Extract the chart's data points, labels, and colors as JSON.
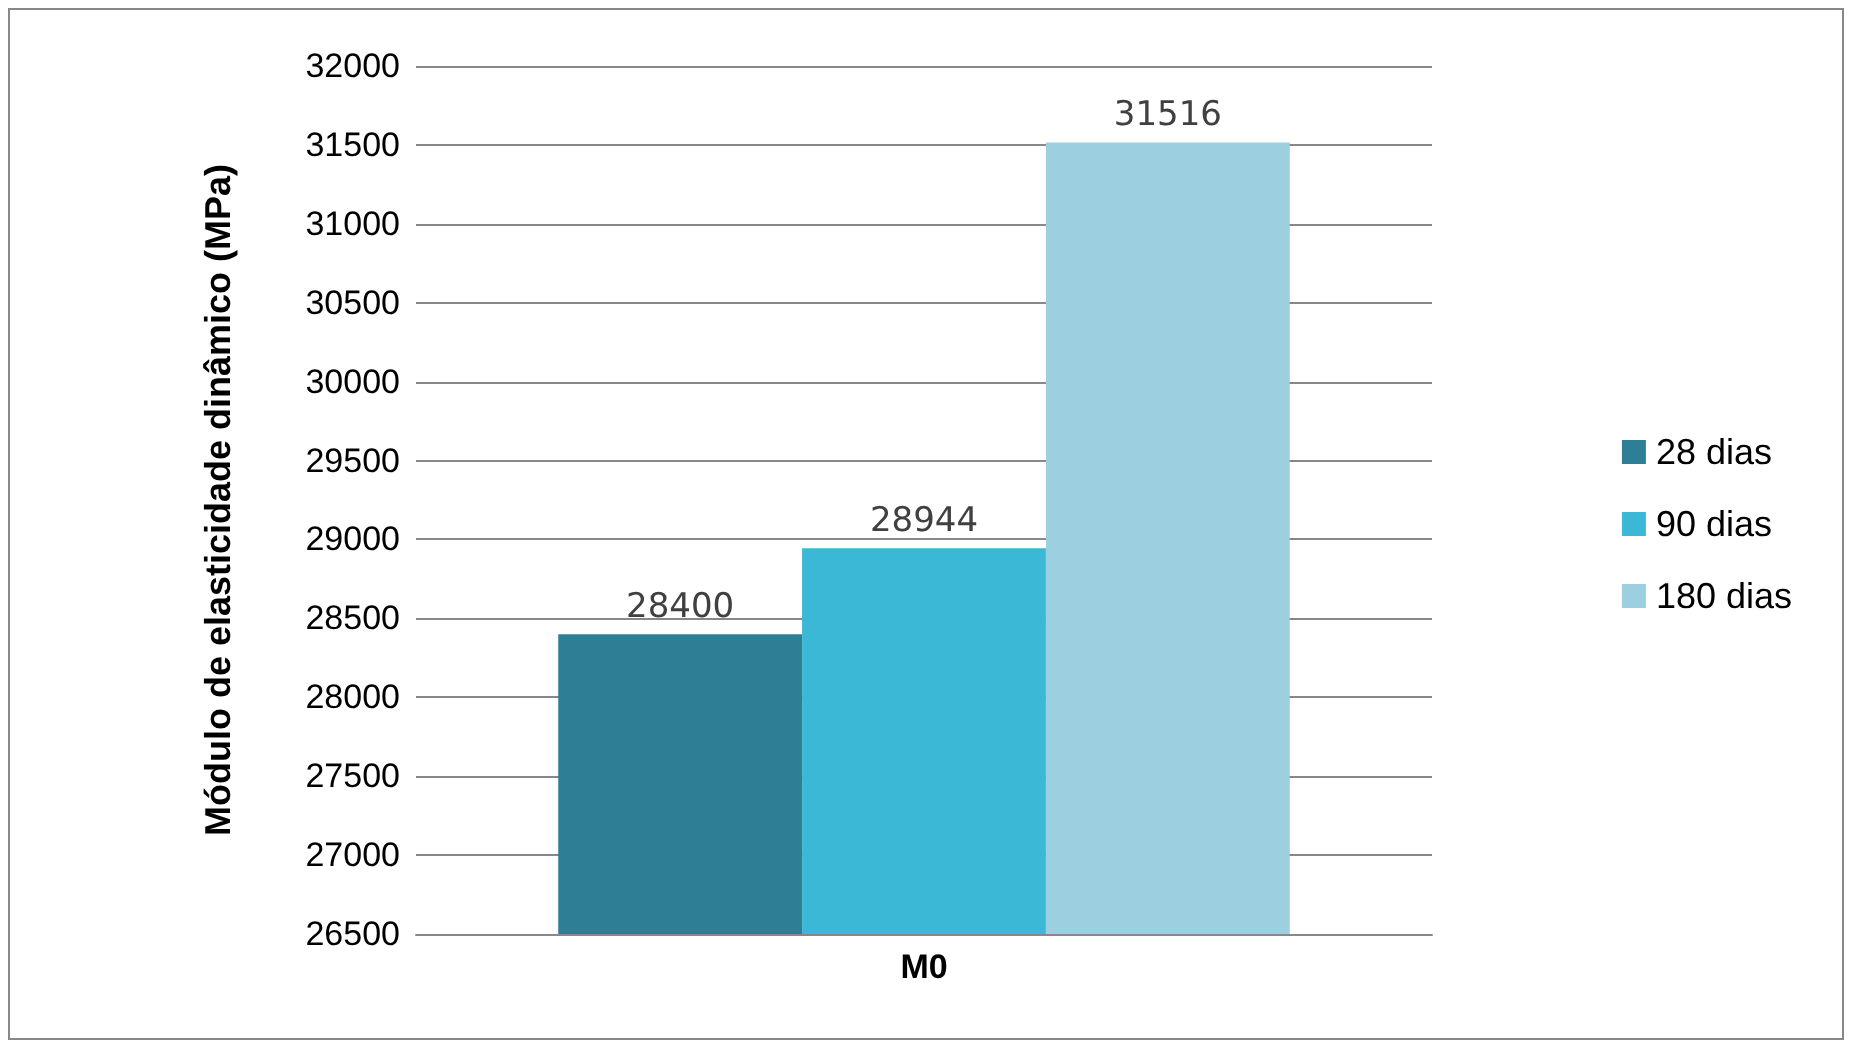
{
  "chart_data": {
    "type": "bar",
    "ylabel": "Módulo de elasticidade dinâmico (MPa)",
    "categories": [
      "M0"
    ],
    "series": [
      {
        "name": "28 dias",
        "color": "#2e7f96",
        "values": [
          28400
        ]
      },
      {
        "name": "90 dias",
        "color": "#3ab8d6",
        "values": [
          28944
        ]
      },
      {
        "name": "180 dias",
        "color": "#9ccfe0",
        "values": [
          31516
        ]
      }
    ],
    "ylim": [
      26500,
      32000
    ],
    "yticks": [
      26500,
      27000,
      27500,
      28000,
      28500,
      29000,
      29500,
      30000,
      30500,
      31000,
      31500,
      32000
    ],
    "grid": "y",
    "legend": "right",
    "data_labels": true
  }
}
